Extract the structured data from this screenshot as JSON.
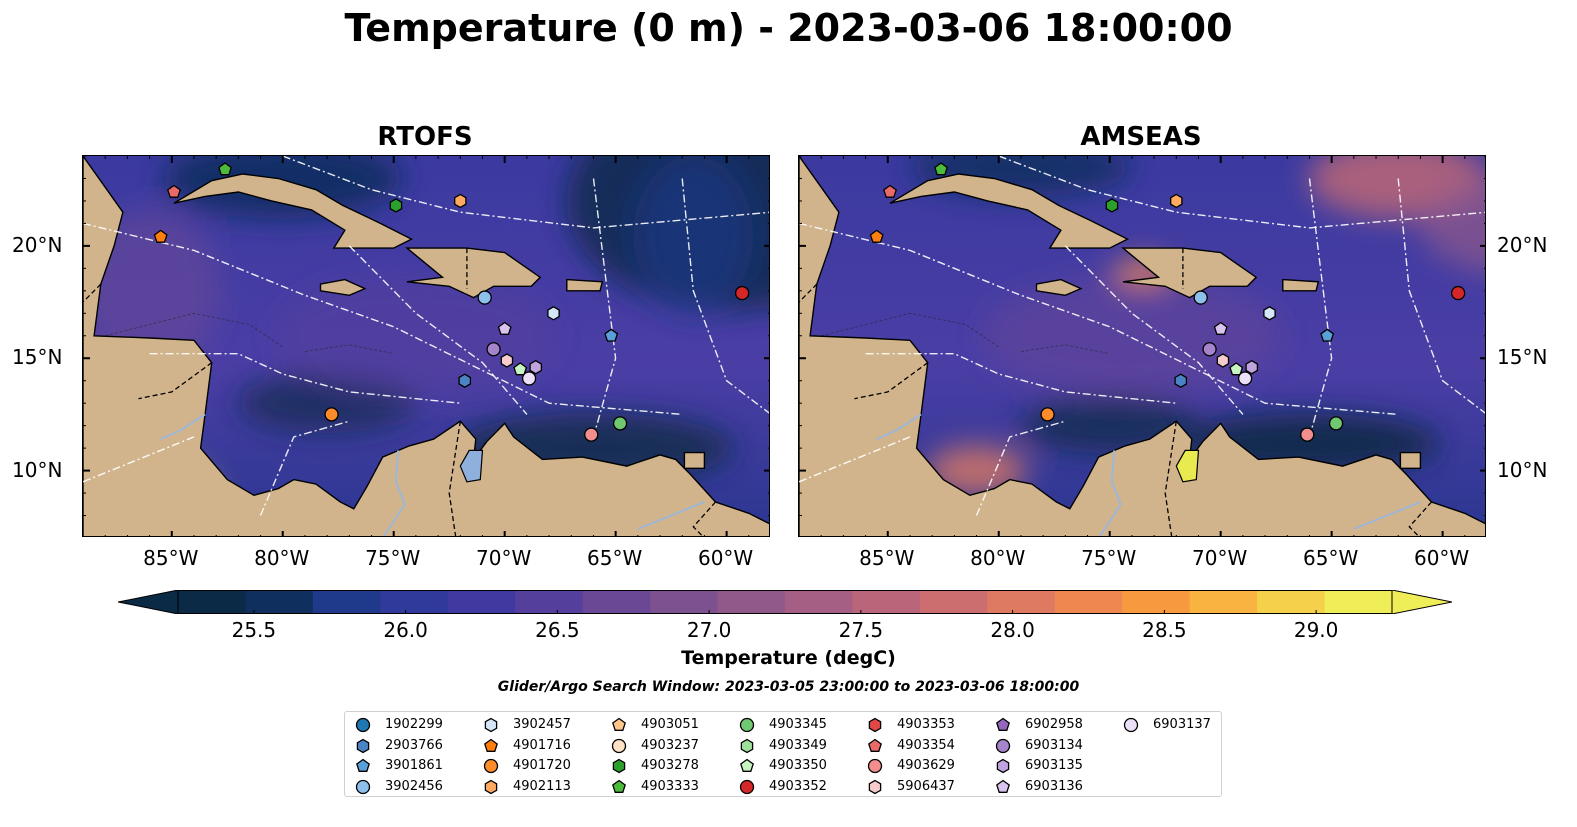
{
  "figure": {
    "title": "Temperature (0 m) - 2023-03-06 18:00:00",
    "search_window": "Glider/Argo Search Window: 2023-03-05 23:00:00 to 2023-03-06 18:00:00"
  },
  "panels": [
    {
      "title": "RTOFS"
    },
    {
      "title": "AMSEAS"
    }
  ],
  "axes": {
    "lon_labels": [
      "85°W",
      "80°W",
      "75°W",
      "70°W",
      "65°W",
      "60°W"
    ],
    "lon_values": [
      -85,
      -80,
      -75,
      -70,
      -65,
      -60
    ],
    "lat_labels": [
      "20°N",
      "15°N",
      "10°N"
    ],
    "lat_values": [
      20,
      15,
      10
    ],
    "lon_range": [
      -89.0,
      -58.0
    ],
    "lat_range": [
      7.0,
      24.0
    ]
  },
  "colorbar": {
    "label": "Temperature (degC)",
    "range": [
      25.25,
      29.25
    ],
    "tick_values": [
      25.5,
      26.0,
      26.5,
      27.0,
      27.5,
      28.0,
      28.5,
      29.0
    ],
    "tick_labels": [
      "25.5",
      "26.0",
      "26.5",
      "27.0",
      "27.5",
      "28.0",
      "28.5",
      "29.0"
    ],
    "colors": [
      "#0a2a45",
      "#0f2f5f",
      "#1f3a8a",
      "#2f3a9a",
      "#403aa0",
      "#553f9c",
      "#6a4896",
      "#7d5090",
      "#91588a",
      "#a55e84",
      "#b9667b",
      "#cc6e70",
      "#df7a62",
      "#ee8750",
      "#f79a3f",
      "#f9b340",
      "#f5d04a",
      "#f0ee58"
    ]
  },
  "map_colors": {
    "land": "#d2b48c",
    "ocean_mask": "#8fb0dd",
    "river": "#9db7d6",
    "cool": "#0d2a4d",
    "mid": "#4a3ea5",
    "warm": "#f2e450"
  },
  "floats": [
    {
      "id": "1902299",
      "marker": "circle",
      "color": "#1f77b4"
    },
    {
      "id": "2903766",
      "marker": "hexagon",
      "color": "#4a84c4"
    },
    {
      "id": "3901861",
      "marker": "pentagon",
      "color": "#5aa0d8"
    },
    {
      "id": "3902456",
      "marker": "circle",
      "color": "#8ec0ec"
    },
    {
      "id": "3902457",
      "marker": "hexagon",
      "color": "#d4e6f8"
    },
    {
      "id": "4901716",
      "marker": "pentagon",
      "color": "#ff7f0e"
    },
    {
      "id": "4901720",
      "marker": "circle",
      "color": "#ff8c2a"
    },
    {
      "id": "4902113",
      "marker": "hexagon",
      "color": "#ffaa60"
    },
    {
      "id": "4903051",
      "marker": "pentagon",
      "color": "#ffc58a"
    },
    {
      "id": "4903237",
      "marker": "circle",
      "color": "#ffe2c4"
    },
    {
      "id": "4903278",
      "marker": "hexagon",
      "color": "#2ca02c"
    },
    {
      "id": "4903333",
      "marker": "pentagon",
      "color": "#4cbb3c"
    },
    {
      "id": "4903345",
      "marker": "circle",
      "color": "#70c870"
    },
    {
      "id": "4903349",
      "marker": "hexagon",
      "color": "#9ee09a"
    },
    {
      "id": "4903350",
      "marker": "pentagon",
      "color": "#c8f4c4"
    },
    {
      "id": "4903352",
      "marker": "circle",
      "color": "#d62728"
    },
    {
      "id": "4903353",
      "marker": "hexagon",
      "color": "#e04848"
    },
    {
      "id": "4903354",
      "marker": "pentagon",
      "color": "#ea6a6a"
    },
    {
      "id": "4903629",
      "marker": "circle",
      "color": "#f28e8e"
    },
    {
      "id": "5906437",
      "marker": "hexagon",
      "color": "#f8cccc"
    },
    {
      "id": "6902958",
      "marker": "pentagon",
      "color": "#9467bd"
    },
    {
      "id": "6903134",
      "marker": "circle",
      "color": "#a684cc"
    },
    {
      "id": "6903135",
      "marker": "hexagon",
      "color": "#bfa4de"
    },
    {
      "id": "6903136",
      "marker": "pentagon",
      "color": "#d8c4ee"
    },
    {
      "id": "6903137",
      "marker": "circle",
      "color": "#ece0f8"
    }
  ],
  "float_positions": [
    {
      "id": "4903333",
      "lon": -82.6,
      "lat": 23.4
    },
    {
      "id": "4903354",
      "lon": -84.9,
      "lat": 22.4
    },
    {
      "id": "4901716",
      "lon": -85.5,
      "lat": 20.4
    },
    {
      "id": "4903278",
      "lon": -74.9,
      "lat": 21.8
    },
    {
      "id": "4902113",
      "lon": -72.0,
      "lat": 22.0
    },
    {
      "id": "3902456",
      "lon": -70.9,
      "lat": 17.7
    },
    {
      "id": "3902457",
      "lon": -67.8,
      "lat": 17.0
    },
    {
      "id": "3901861",
      "lon": -65.2,
      "lat": 16.0
    },
    {
      "id": "4903352",
      "lon": -59.3,
      "lat": 17.9
    },
    {
      "id": "6903136",
      "lon": -70.0,
      "lat": 16.3
    },
    {
      "id": "6903134",
      "lon": -70.5,
      "lat": 15.4
    },
    {
      "id": "5906437",
      "lon": -69.9,
      "lat": 14.9
    },
    {
      "id": "4903350",
      "lon": -69.3,
      "lat": 14.5
    },
    {
      "id": "6903135",
      "lon": -68.6,
      "lat": 14.6
    },
    {
      "id": "6903137",
      "lon": -68.9,
      "lat": 14.1
    },
    {
      "id": "2903766",
      "lon": -71.8,
      "lat": 14.0
    },
    {
      "id": "4901720",
      "lon": -77.8,
      "lat": 12.5
    },
    {
      "id": "4903629",
      "lon": -66.1,
      "lat": 11.6
    },
    {
      "id": "4903345",
      "lon": -64.8,
      "lat": 12.1
    }
  ]
}
